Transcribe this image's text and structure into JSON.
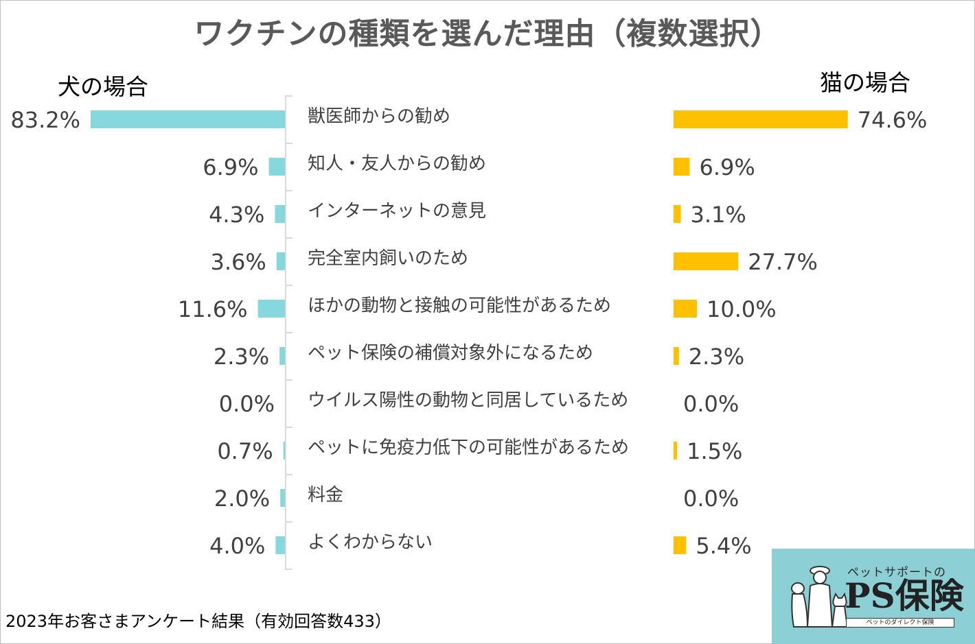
{
  "title": "ワクチンの種類を選んだ理由（複数選択）",
  "dog_panel_label": "犬の場合",
  "cat_panel_label": "猫の場合",
  "footnote": "2023年お客さまアンケート結果（有効回答数433）",
  "logo": {
    "tagline": "ペットサポートの",
    "brand": "PS保険",
    "subtitle": "ペットのダイレクト保険"
  },
  "colors": {
    "dog_bar": "#85d8dc",
    "cat_bar": "#ffc000",
    "axis": "#d9d9d9",
    "text": "#404040"
  },
  "chart_data": {
    "type": "bar",
    "orientation": "horizontal-butterfly",
    "title": "ワクチンの種類を選んだ理由（複数選択）",
    "unit": "%",
    "categories": [
      "獣医師からの勧め",
      "知人・友人からの勧め",
      "インターネットの意見",
      "完全室内飼いのため",
      "ほかの動物と接触の可能性があるため",
      "ペット保険の補償対象外になるため",
      "ウイルス陽性の動物と同居しているため",
      "ペットに免疫力低下の可能性があるため",
      "料金",
      "よくわからない"
    ],
    "series": [
      {
        "name": "犬の場合",
        "values": [
          83.2,
          6.9,
          4.3,
          3.6,
          11.6,
          2.3,
          0.0,
          0.7,
          2.0,
          4.0
        ],
        "labels": [
          "83.2%",
          "6.9%",
          "4.3%",
          "3.6%",
          "11.6%",
          "2.3%",
          "0.0%",
          "0.7%",
          "2.0%",
          "4.0%"
        ]
      },
      {
        "name": "猫の場合",
        "values": [
          74.6,
          6.9,
          3.1,
          27.7,
          10.0,
          2.3,
          0.0,
          1.5,
          0.0,
          5.4
        ],
        "labels": [
          "74.6%",
          "6.9%",
          "3.1%",
          "27.7%",
          "10.0%",
          "2.3%",
          "0.0%",
          "1.5%",
          "0.0%",
          "5.4%"
        ]
      }
    ]
  }
}
